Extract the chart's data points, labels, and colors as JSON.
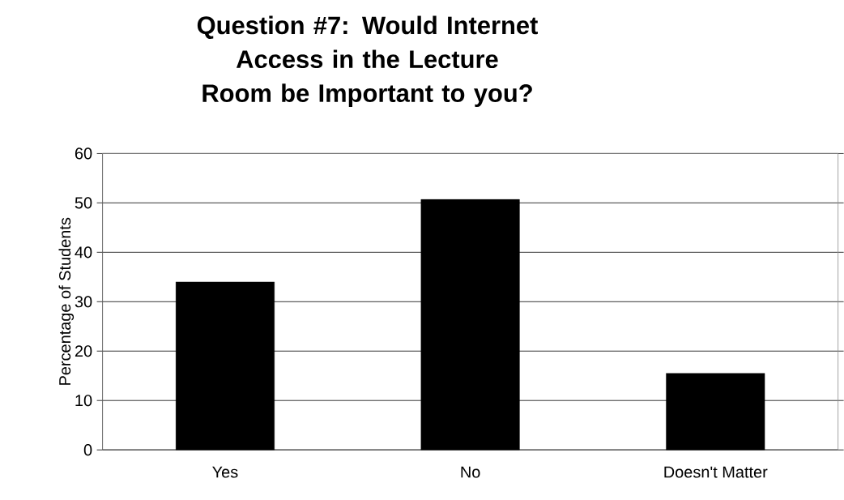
{
  "chart_data": {
    "type": "bar",
    "title": "Question #7: Would Internet Access in the Lecture Room be Important to you?",
    "ylabel": "Percentage of Students",
    "categories": [
      "Yes",
      "No",
      "Doesn't Matter"
    ],
    "values": [
      34,
      50.7,
      15.5
    ],
    "color": "#000000",
    "ylim": [
      0,
      60
    ],
    "yticks": [
      0,
      10,
      20,
      30,
      40,
      50,
      60
    ],
    "grid": "y"
  }
}
